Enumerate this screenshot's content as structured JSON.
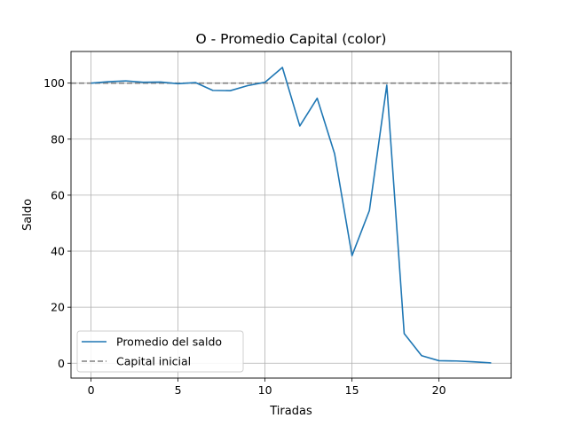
{
  "chart_data": {
    "type": "line",
    "title": "O - Promedio Capital (color)",
    "xlabel": "Tiradas",
    "ylabel": "Saldo",
    "xlim": [
      -1.15,
      24.15
    ],
    "ylim": [
      -5.3,
      111.3
    ],
    "xticks": [
      0,
      5,
      10,
      15,
      20
    ],
    "yticks": [
      0,
      20,
      40,
      60,
      80,
      100
    ],
    "xtick_labels": [
      "0",
      "5",
      "10",
      "15",
      "20"
    ],
    "ytick_labels": [
      "0",
      "20",
      "40",
      "60",
      "80",
      "100"
    ],
    "grid": true,
    "legend_position": "lower-left",
    "series": [
      {
        "name": "Promedio del saldo",
        "style": "solid",
        "color": "#1f77b4",
        "x": [
          0,
          1,
          2,
          3,
          4,
          5,
          6,
          7,
          8,
          9,
          10,
          11,
          12,
          13,
          14,
          15,
          16,
          17,
          18,
          19,
          20,
          21,
          22,
          23
        ],
        "y": [
          100,
          100.5,
          100.8,
          100.3,
          100.4,
          99.8,
          100.2,
          97.4,
          97.3,
          99.1,
          100.3,
          105.6,
          84.7,
          94.6,
          74.8,
          38.4,
          54.5,
          99.3,
          10.6,
          2.7,
          0.9,
          0.8,
          0.5,
          0.1
        ]
      },
      {
        "name": "Capital inicial",
        "style": "dashed",
        "color": "#808080",
        "x": [
          -1.15,
          24.15
        ],
        "y": [
          100,
          100
        ]
      }
    ]
  }
}
